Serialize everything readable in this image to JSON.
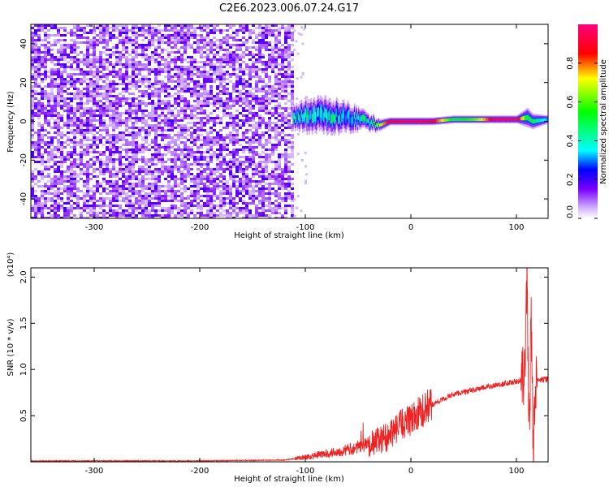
{
  "title": "C2E6.2023.006.07.24.G17",
  "colorbar": {
    "label": "Normalized spectral amplitude",
    "ticks": [
      "0.0",
      "0.2",
      "0.4",
      "0.6",
      "0.8"
    ],
    "range": [
      0,
      1
    ],
    "colors": [
      "#ffffff",
      "#c8a0ff",
      "#7a00ff",
      "#0000ff",
      "#00ffff",
      "#00ff00",
      "#ffff00",
      "#ff0000",
      "#ff0080"
    ]
  },
  "chart_data": [
    {
      "type": "heatmap",
      "xlabel": "Height of straight line (km)",
      "ylabel": "Frequency (Hz)",
      "xlim": [
        -360,
        130
      ],
      "ylim": [
        -50,
        50
      ],
      "xticks": [
        -300,
        -200,
        -100,
        0,
        100
      ],
      "yticks": [
        -40,
        -20,
        0,
        20,
        40
      ],
      "noise_region_km": [
        -360,
        -112
      ],
      "signal_track": {
        "x": [
          -110,
          -100,
          -80,
          -60,
          -40,
          -30,
          -20,
          0,
          20,
          40,
          60,
          80,
          100,
          110,
          115,
          130
        ],
        "center_hz": [
          3,
          3,
          3,
          2,
          0,
          -2,
          0,
          0,
          0,
          1,
          1,
          1,
          1,
          2,
          0,
          1
        ],
        "half_width_hz": [
          6,
          8,
          9,
          7,
          4,
          3,
          2,
          2,
          2,
          2,
          2,
          2,
          2,
          5,
          4,
          2
        ],
        "peak_amplitude": [
          0.4,
          0.5,
          0.45,
          0.4,
          0.5,
          0.7,
          0.9,
          0.95,
          0.9,
          0.5,
          0.6,
          0.95,
          0.95,
          0.5,
          0.5,
          0.3
        ]
      }
    },
    {
      "type": "line",
      "xlabel": "Height of straight line (km)",
      "ylabel": "SNR (10 * v/v)",
      "y_multiplier": "(x10⁴)",
      "xlim": [
        -360,
        130
      ],
      "ylim": [
        0,
        2.1
      ],
      "xticks": [
        -300,
        -200,
        -100,
        0,
        100
      ],
      "yticks": [
        0.5,
        1.0,
        1.5,
        2.0
      ],
      "series": [
        {
          "color": "#ee2222",
          "x": [
            -360,
            -300,
            -200,
            -120,
            -100,
            -80,
            -60,
            -40,
            -20,
            -10,
            0,
            10,
            20,
            40,
            60,
            80,
            100,
            105,
            108,
            110,
            112,
            114,
            116,
            118,
            120,
            130
          ],
          "y": [
            0.01,
            0.01,
            0.01,
            0.02,
            0.05,
            0.09,
            0.13,
            0.19,
            0.28,
            0.4,
            0.45,
            0.55,
            0.62,
            0.73,
            0.78,
            0.83,
            0.87,
            0.88,
            0.95,
            2.05,
            0.25,
            1.55,
            0.1,
            0.9,
            0.88,
            0.9
          ]
        }
      ]
    }
  ]
}
